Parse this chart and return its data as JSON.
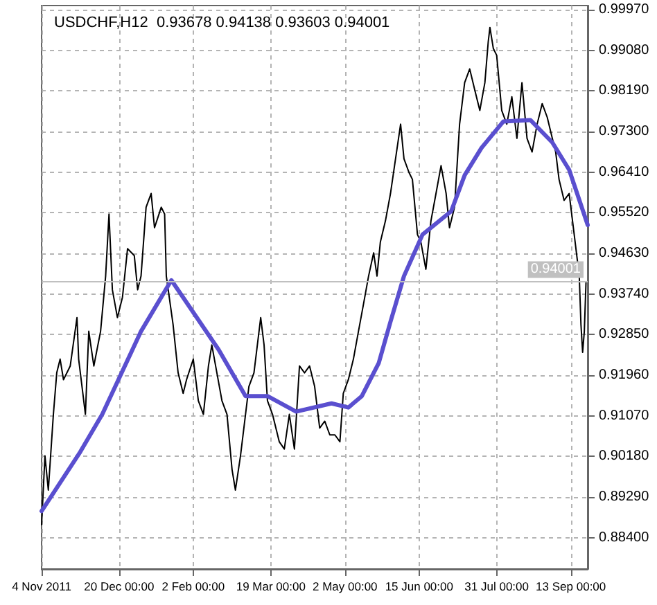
{
  "chart_data": {
    "type": "line",
    "title": "USDCHF,H12  0.93678 0.94138 0.93603 0.94001",
    "xlim": [
      "2011-11-04",
      "2012-09-23"
    ],
    "xticks": [
      {
        "value": "2011-11-04",
        "label": "4 Nov 2011"
      },
      {
        "value": "2011-12-20",
        "label": "20 Dec 00:00"
      },
      {
        "value": "2012-02-02",
        "label": "2 Feb 00:00"
      },
      {
        "value": "2012-03-19",
        "label": "19 Mar 00:00"
      },
      {
        "value": "2012-05-02",
        "label": "2 May 00:00"
      },
      {
        "value": "2012-06-15",
        "label": "15 Jun 00:00"
      },
      {
        "value": "2012-07-31",
        "label": "31 Jul 00:00"
      },
      {
        "value": "2012-09-13",
        "label": "13 Sep 00:00"
      }
    ],
    "ylim": [
      0.8771,
      1.0006
    ],
    "yticks": [
      {
        "value": 0.884,
        "label": "0.88400"
      },
      {
        "value": 0.8929,
        "label": "0.89290"
      },
      {
        "value": 0.9018,
        "label": "0.90180"
      },
      {
        "value": 0.9107,
        "label": "0.91070"
      },
      {
        "value": 0.9196,
        "label": "0.91960"
      },
      {
        "value": 0.9285,
        "label": "0.92850"
      },
      {
        "value": 0.9374,
        "label": "0.93740"
      },
      {
        "value": 0.9463,
        "label": "0.94630"
      },
      {
        "value": 0.9552,
        "label": "0.95520"
      },
      {
        "value": 0.9641,
        "label": "0.96410"
      },
      {
        "value": 0.973,
        "label": "0.97300"
      },
      {
        "value": 0.9819,
        "label": "0.98190"
      },
      {
        "value": 0.9908,
        "label": "0.99080"
      },
      {
        "value": 0.9997,
        "label": "0.99970"
      }
    ],
    "grid": true,
    "marker": "none",
    "line_style": "solid",
    "ref_lines": [
      {
        "axis": "y",
        "value": 0.94001,
        "label": "0.94001",
        "color": "#c0c0c0"
      }
    ],
    "series": [
      {
        "color": "#000000",
        "x": [
          "2011-11-04",
          "2011-11-06",
          "2011-11-08",
          "2011-11-11",
          "2011-11-13",
          "2011-11-15",
          "2011-11-17",
          "2011-11-21",
          "2011-11-25",
          "2011-11-26",
          "2011-11-30",
          "2011-12-02",
          "2011-12-05",
          "2011-12-09",
          "2011-12-12",
          "2011-12-14",
          "2011-12-16",
          "2011-12-19",
          "2011-12-22",
          "2011-12-25",
          "2011-12-29",
          "2011-12-31",
          "2012-01-02",
          "2012-01-05",
          "2012-01-08",
          "2012-01-10",
          "2012-01-14",
          "2012-01-16",
          "2012-01-17",
          "2012-01-21",
          "2012-01-24",
          "2012-01-27",
          "2012-01-29",
          "2012-02-02",
          "2012-02-05",
          "2012-02-08",
          "2012-02-11",
          "2012-02-13",
          "2012-02-16",
          "2012-02-19",
          "2012-02-22",
          "2012-02-25",
          "2012-02-27",
          "2012-03-01",
          "2012-03-04",
          "2012-03-06",
          "2012-03-09",
          "2012-03-13",
          "2012-03-15",
          "2012-03-17",
          "2012-03-20",
          "2012-03-24",
          "2012-03-27",
          "2012-03-30",
          "2012-04-02",
          "2012-04-05",
          "2012-04-08",
          "2012-04-11",
          "2012-04-14",
          "2012-04-17",
          "2012-04-20",
          "2012-04-23",
          "2012-04-26",
          "2012-04-29",
          "2012-05-01",
          "2012-05-04",
          "2012-05-07",
          "2012-05-10",
          "2012-05-13",
          "2012-05-16",
          "2012-05-19",
          "2012-05-21",
          "2012-05-23",
          "2012-05-26",
          "2012-05-29",
          "2012-06-01",
          "2012-06-04",
          "2012-06-06",
          "2012-06-09",
          "2012-06-11",
          "2012-06-14",
          "2012-06-16",
          "2012-06-19",
          "2012-06-22",
          "2012-06-25",
          "2012-06-28",
          "2012-07-01",
          "2012-07-03",
          "2012-07-06",
          "2012-07-09",
          "2012-07-12",
          "2012-07-15",
          "2012-07-18",
          "2012-07-21",
          "2012-07-24",
          "2012-07-26",
          "2012-07-27",
          "2012-07-29",
          "2012-07-31",
          "2012-08-03",
          "2012-08-06",
          "2012-08-09",
          "2012-08-12",
          "2012-08-15",
          "2012-08-18",
          "2012-08-21",
          "2012-08-24",
          "2012-08-27",
          "2012-08-30",
          "2012-09-02",
          "2012-09-04",
          "2012-09-06",
          "2012-09-09",
          "2012-09-12",
          "2012-09-15",
          "2012-09-18",
          "2012-09-19",
          "2012-09-20",
          "2012-09-21",
          "2012-09-22"
        ],
        "values": [
          0.8868,
          0.9019,
          0.8944,
          0.911,
          0.9201,
          0.9231,
          0.9186,
          0.9216,
          0.9322,
          0.9231,
          0.911,
          0.9292,
          0.9216,
          0.9292,
          0.9413,
          0.9549,
          0.9383,
          0.9322,
          0.9367,
          0.9473,
          0.9458,
          0.9383,
          0.9413,
          0.9564,
          0.9594,
          0.9519,
          0.9564,
          0.9549,
          0.9413,
          0.9307,
          0.9201,
          0.9156,
          0.9186,
          0.9231,
          0.914,
          0.911,
          0.9216,
          0.9262,
          0.9201,
          0.914,
          0.911,
          0.8989,
          0.8944,
          0.9019,
          0.911,
          0.9171,
          0.9201,
          0.9322,
          0.9262,
          0.914,
          0.911,
          0.905,
          0.9034,
          0.911,
          0.9034,
          0.9216,
          0.9201,
          0.9216,
          0.9171,
          0.908,
          0.9095,
          0.9065,
          0.9065,
          0.905,
          0.9156,
          0.9186,
          0.9231,
          0.9292,
          0.9352,
          0.9413,
          0.9464,
          0.9413,
          0.9488,
          0.9534,
          0.9594,
          0.967,
          0.9746,
          0.967,
          0.964,
          0.9625,
          0.9504,
          0.9488,
          0.9428,
          0.9534,
          0.9594,
          0.9655,
          0.9594,
          0.9519,
          0.9564,
          0.9746,
          0.9837,
          0.9867,
          0.9821,
          0.9776,
          0.9837,
          0.9927,
          0.9958,
          0.9912,
          0.9897,
          0.9776,
          0.9746,
          0.9806,
          0.9715,
          0.9837,
          0.9715,
          0.9685,
          0.9746,
          0.9791,
          0.9761,
          0.9715,
          0.9685,
          0.9625,
          0.9579,
          0.9594,
          0.9504,
          0.9413,
          0.9307,
          0.9246,
          0.9292,
          0.94001
        ]
      },
      {
        "color": "#5a4fcf",
        "x": [
          "2011-11-04",
          "2011-11-27",
          "2011-12-10",
          "2012-01-02",
          "2012-01-20",
          "2012-02-17",
          "2012-03-04",
          "2012-03-17",
          "2012-04-03",
          "2012-04-24",
          "2012-05-04",
          "2012-05-12",
          "2012-05-22",
          "2012-05-29",
          "2012-06-06",
          "2012-06-17",
          "2012-07-04",
          "2012-07-12",
          "2012-07-22",
          "2012-08-04",
          "2012-08-20",
          "2012-09-02",
          "2012-09-12",
          "2012-09-23"
        ],
        "values": [
          0.8898,
          0.9028,
          0.911,
          0.9292,
          0.9404,
          0.9252,
          0.915,
          0.915,
          0.9116,
          0.9134,
          0.9125,
          0.915,
          0.9222,
          0.9313,
          0.9413,
          0.9504,
          0.9555,
          0.9634,
          0.9694,
          0.9752,
          0.9755,
          0.9706,
          0.9646,
          0.9525
        ]
      }
    ]
  }
}
